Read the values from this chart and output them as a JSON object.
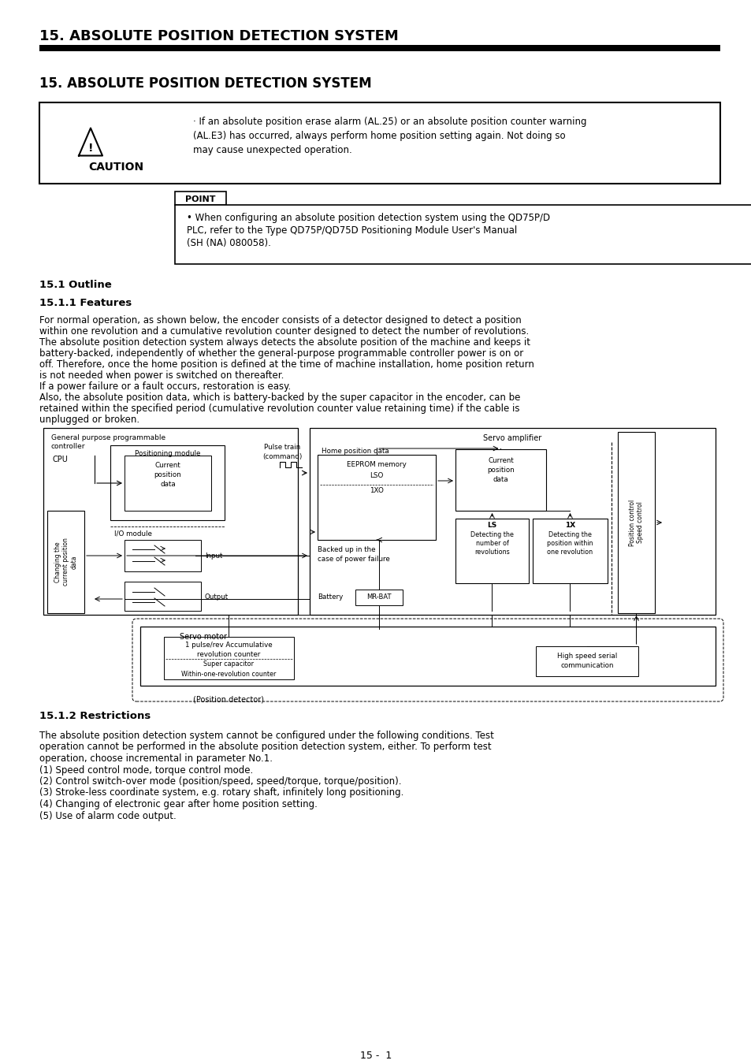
{
  "page_title": "15. ABSOLUTE POSITION DETECTION SYSTEM",
  "section_title": "15. ABSOLUTE POSITION DETECTION SYSTEM",
  "caution_line1": "· If an absolute position erase alarm (AL.25) or an absolute position counter warning",
  "caution_line2": "(AL.E3) has occurred, always perform home position setting again. Not doing so",
  "caution_line3": "may cause unexpected operation.",
  "point_line1": "• When configuring an absolute position detection system using the QD75P/D",
  "point_line2": "PLC, refer to the Type QD75P/QD75D Positioning Module User's Manual",
  "point_line3": "(SH (NA) 080058).",
  "outline_heading": "15.1 Outline",
  "features_heading": "15.1.1 Features",
  "fp1": "For normal operation, as shown below, the encoder consists of a detector designed to detect a position",
  "fp2": "within one revolution and a cumulative revolution counter designed to detect the number of revolutions.",
  "fp3": "The absolute position detection system always detects the absolute position of the machine and keeps it",
  "fp4": "battery-backed, independently of whether the general-purpose programmable controller power is on or",
  "fp5": "off. Therefore, once the home position is defined at the time of machine installation, home position return",
  "fp6": "is not needed when power is switched on thereafter.",
  "fp7": "If a power failure or a fault occurs, restoration is easy.",
  "fp8": "Also, the absolute position data, which is battery-backed by the super capacitor in the encoder, can be",
  "fp9": "retained within the specified period (cumulative revolution counter value retaining time) if the cable is",
  "fp10": "unplugged or broken.",
  "restrictions_heading": "15.1.2 Restrictions",
  "rp1": "The absolute position detection system cannot be configured under the following conditions. Test",
  "rp2": "operation cannot be performed in the absolute position detection system, either. To perform test",
  "rp3": "operation, choose incremental in parameter No.1.",
  "rp4": "(1) Speed control mode, torque control mode.",
  "rp5": "(2) Control switch-over mode (position/speed, speed/torque, torque/position).",
  "rp6": "(3) Stroke-less coordinate system, e.g. rotary shaft, infinitely long positioning.",
  "rp7": "(4) Changing of electronic gear after home position setting.",
  "rp8": "(5) Use of alarm code output.",
  "page_number": "15 -  1"
}
